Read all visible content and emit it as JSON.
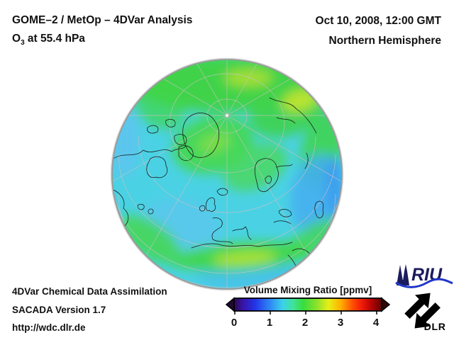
{
  "header": {
    "title_line1": "GOME–2 / MetOp – 4DVar Analysis",
    "species": "O",
    "species_sub": "3",
    "level": " at 55.4 hPa",
    "datetime": "Oct 10, 2008, 12:00 GMT",
    "region": "Northern Hemisphere"
  },
  "footer": {
    "lines": [
      "4DVar Chemical Data Assimilation",
      "SACADA Version 1.7",
      "http://wdc.dlr.de"
    ]
  },
  "colorbar": {
    "title": "Volume Mixing Ratio [ppmv]",
    "ticks": [
      "0",
      "1",
      "2",
      "3",
      "4"
    ]
  },
  "logos": {
    "riu_text": "RIU",
    "dlr_text": "DLR"
  },
  "colors": {
    "base_field_cyan": "#4ad2e4",
    "limb_gray": "#999999",
    "graticule": "#c9c2c2",
    "coastline": "#151515",
    "riu_navy": "#1b1b5e",
    "riu_wave_blue": "#2136c8",
    "logo_black": "#000000"
  },
  "chart_data": {
    "type": "heatmap",
    "title": "GOME-2 / MetOp - 4DVar Analysis, O3 at 55.4 hPa",
    "subtitle": "Oct 10, 2008, 12:00 GMT - Northern Hemisphere",
    "projection": "orthographic, northern hemisphere, pole near top-center of disk, Europe at bottom center",
    "quantity": "O3 volume mixing ratio",
    "unit": "ppmv",
    "colorbar": {
      "label": "Volume Mixing Ratio [ppmv]",
      "range": [
        0,
        4
      ],
      "tick_values": [
        0,
        1,
        2,
        3,
        4
      ],
      "gradient_stops": [
        {
          "pos": 0.0,
          "color": "#2b0a4e"
        },
        {
          "pos": 0.06,
          "color": "#3a14a8"
        },
        {
          "pos": 0.14,
          "color": "#2333e8"
        },
        {
          "pos": 0.24,
          "color": "#2e86f5"
        },
        {
          "pos": 0.33,
          "color": "#3cd2ea"
        },
        {
          "pos": 0.4,
          "color": "#3fe39a"
        },
        {
          "pos": 0.47,
          "color": "#38dd3c"
        },
        {
          "pos": 0.56,
          "color": "#8ce12c"
        },
        {
          "pos": 0.64,
          "color": "#e8ee18"
        },
        {
          "pos": 0.72,
          "color": "#ffb300"
        },
        {
          "pos": 0.8,
          "color": "#ff5100"
        },
        {
          "pos": 0.87,
          "color": "#ef1808"
        },
        {
          "pos": 0.93,
          "color": "#b50505"
        },
        {
          "pos": 1.0,
          "color": "#640000"
        }
      ],
      "end_arrows": "out-of-range arrows on both ends"
    },
    "field_regions": [
      {
        "area": "Arctic cap / Siberia (top of disk)",
        "value_ppmv": 2.1,
        "appearance": "green with yellow-green patches"
      },
      {
        "area": "top-right (NE Siberia)",
        "value_ppmv": 2.3,
        "appearance": "yellow-green"
      },
      {
        "area": "Greenland / N-Atlantic swirl (center)",
        "value_ppmv": 2.1,
        "appearance": "green band with yellow-green core"
      },
      {
        "area": "mid-latitude background",
        "value_ppmv": 1.6,
        "appearance": "cyan"
      },
      {
        "area": "central Asia (right of disk)",
        "value_ppmv": 1.2,
        "appearance": "light blue"
      },
      {
        "area": "subtropical band across North Africa (bottom)",
        "value_ppmv": 2.2,
        "appearance": "green-yellow band"
      },
      {
        "area": "subtropical Atlantic (lower-left)",
        "value_ppmv": 1.4,
        "appearance": "pale blue"
      }
    ],
    "annotations": [
      "white dot marks North Pole",
      "gray graticule lines radiate from pole",
      "black coastline outlines"
    ]
  }
}
